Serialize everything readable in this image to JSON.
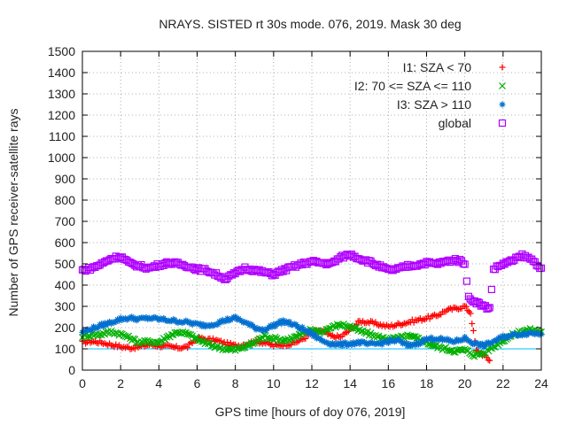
{
  "chart_data": {
    "type": "scatter",
    "title": "NRAYS. SISTED rt 30s mode. 076, 2019. Mask 30 deg",
    "xlabel": "GPS time [hours of doy 076, 2019]",
    "ylabel": "Number of GPS receiver-satellite rays",
    "xlim": [
      0,
      24
    ],
    "ylim": [
      0,
      1500
    ],
    "xticks": [
      0,
      2,
      4,
      6,
      8,
      10,
      12,
      14,
      16,
      18,
      20,
      22,
      24
    ],
    "yticks": [
      0,
      100,
      200,
      300,
      400,
      500,
      600,
      700,
      800,
      900,
      1000,
      1100,
      1200,
      1300,
      1400,
      1500
    ],
    "grid": true,
    "legend_position": "top-right",
    "reference_line": {
      "y": 100,
      "color": "#00bfff"
    },
    "series": [
      {
        "name": "I1: SZA < 70",
        "marker": "+",
        "color": "#ff0000",
        "points": [
          [
            0,
            130
          ],
          [
            0.5,
            135
          ],
          [
            1,
            130
          ],
          [
            1.5,
            120
          ],
          [
            2,
            110
          ],
          [
            2.5,
            105
          ],
          [
            3,
            110
          ],
          [
            3.5,
            120
          ],
          [
            4,
            115
          ],
          [
            4.5,
            110
          ],
          [
            5,
            105
          ],
          [
            5.5,
            110
          ],
          [
            6,
            150
          ],
          [
            6.5,
            145
          ],
          [
            7,
            140
          ],
          [
            7.5,
            125
          ],
          [
            8,
            115
          ],
          [
            8.5,
            120
          ],
          [
            9,
            135
          ],
          [
            9.5,
            130
          ],
          [
            10,
            115
          ],
          [
            10.5,
            120
          ],
          [
            11,
            125
          ],
          [
            11.5,
            145
          ],
          [
            12,
            175
          ],
          [
            12.5,
            185
          ],
          [
            13,
            160
          ],
          [
            13.5,
            155
          ],
          [
            14,
            190
          ],
          [
            14.5,
            230
          ],
          [
            15,
            225
          ],
          [
            15.5,
            215
          ],
          [
            16,
            205
          ],
          [
            16.5,
            215
          ],
          [
            17,
            225
          ],
          [
            17.5,
            235
          ],
          [
            18,
            245
          ],
          [
            18.5,
            255
          ],
          [
            19,
            280
          ],
          [
            19.5,
            290
          ],
          [
            20,
            300
          ],
          [
            20.3,
            270
          ],
          [
            20.6,
            90
          ],
          [
            21,
            70
          ],
          [
            21.3,
            45
          ]
        ]
      },
      {
        "name": "I2: 70 <= SZA <= 110",
        "marker": "x",
        "color": "#00b000",
        "points": [
          [
            0,
            160
          ],
          [
            0.5,
            165
          ],
          [
            1,
            170
          ],
          [
            1.5,
            180
          ],
          [
            2,
            170
          ],
          [
            2.5,
            150
          ],
          [
            3,
            130
          ],
          [
            3.5,
            135
          ],
          [
            4,
            130
          ],
          [
            4.5,
            160
          ],
          [
            5,
            180
          ],
          [
            5.5,
            170
          ],
          [
            6,
            145
          ],
          [
            6.5,
            125
          ],
          [
            7,
            110
          ],
          [
            7.5,
            100
          ],
          [
            8,
            95
          ],
          [
            8.5,
            110
          ],
          [
            9,
            130
          ],
          [
            9.5,
            160
          ],
          [
            10,
            150
          ],
          [
            10.5,
            140
          ],
          [
            11,
            150
          ],
          [
            11.5,
            170
          ],
          [
            12,
            190
          ],
          [
            12.5,
            180
          ],
          [
            13,
            200
          ],
          [
            13.5,
            215
          ],
          [
            14,
            205
          ],
          [
            14.5,
            185
          ],
          [
            15,
            170
          ],
          [
            15.5,
            155
          ],
          [
            16,
            145
          ],
          [
            16.5,
            150
          ],
          [
            17,
            160
          ],
          [
            17.5,
            150
          ],
          [
            18,
            130
          ],
          [
            18.5,
            110
          ],
          [
            19,
            100
          ],
          [
            19.5,
            90
          ],
          [
            20,
            95
          ],
          [
            20.5,
            70
          ],
          [
            21,
            80
          ],
          [
            21.5,
            110
          ],
          [
            22,
            140
          ],
          [
            22.5,
            165
          ],
          [
            23,
            185
          ],
          [
            23.5,
            190
          ],
          [
            24,
            180
          ]
        ]
      },
      {
        "name": "I3: SZA > 110",
        "marker": "*",
        "color": "#0070d0",
        "points": [
          [
            0,
            180
          ],
          [
            0.5,
            195
          ],
          [
            1,
            210
          ],
          [
            1.5,
            225
          ],
          [
            2,
            240
          ],
          [
            2.5,
            245
          ],
          [
            3,
            240
          ],
          [
            3.5,
            245
          ],
          [
            4,
            240
          ],
          [
            4.5,
            235
          ],
          [
            5,
            230
          ],
          [
            5.5,
            225
          ],
          [
            6,
            215
          ],
          [
            6.5,
            210
          ],
          [
            7,
            220
          ],
          [
            7.5,
            235
          ],
          [
            8,
            245
          ],
          [
            8.5,
            225
          ],
          [
            9,
            200
          ],
          [
            9.5,
            190
          ],
          [
            10,
            210
          ],
          [
            10.5,
            230
          ],
          [
            11,
            215
          ],
          [
            11.5,
            195
          ],
          [
            12,
            170
          ],
          [
            12.5,
            140
          ],
          [
            13,
            125
          ],
          [
            13.5,
            120
          ],
          [
            14,
            125
          ],
          [
            14.5,
            130
          ],
          [
            15,
            120
          ],
          [
            15.5,
            125
          ],
          [
            16,
            135
          ],
          [
            16.5,
            140
          ],
          [
            17,
            115
          ],
          [
            17.5,
            125
          ],
          [
            18,
            145
          ],
          [
            18.5,
            150
          ],
          [
            19,
            140
          ],
          [
            19.5,
            135
          ],
          [
            20,
            150
          ],
          [
            20.5,
            125
          ],
          [
            21,
            115
          ],
          [
            21.5,
            135
          ],
          [
            22,
            155
          ],
          [
            22.5,
            165
          ],
          [
            23,
            170
          ],
          [
            23.5,
            175
          ],
          [
            24,
            170
          ]
        ]
      },
      {
        "name": "global",
        "marker": "square",
        "color": "#b000ff",
        "points": [
          [
            0,
            470
          ],
          [
            0.5,
            480
          ],
          [
            1,
            500
          ],
          [
            1.5,
            525
          ],
          [
            2,
            535
          ],
          [
            2.5,
            500
          ],
          [
            3,
            490
          ],
          [
            3.5,
            480
          ],
          [
            4,
            495
          ],
          [
            4.5,
            505
          ],
          [
            5,
            500
          ],
          [
            5.5,
            490
          ],
          [
            6,
            475
          ],
          [
            6.5,
            470
          ],
          [
            7,
            450
          ],
          [
            7.5,
            430
          ],
          [
            8,
            455
          ],
          [
            8.5,
            480
          ],
          [
            9,
            470
          ],
          [
            9.5,
            460
          ],
          [
            10,
            450
          ],
          [
            10.5,
            470
          ],
          [
            11,
            485
          ],
          [
            11.5,
            500
          ],
          [
            12,
            510
          ],
          [
            12.5,
            505
          ],
          [
            13,
            500
          ],
          [
            13.5,
            530
          ],
          [
            14,
            545
          ],
          [
            14.5,
            525
          ],
          [
            15,
            510
          ],
          [
            15.5,
            490
          ],
          [
            16,
            470
          ],
          [
            16.5,
            475
          ],
          [
            17,
            490
          ],
          [
            17.5,
            495
          ],
          [
            18,
            505
          ],
          [
            18.5,
            500
          ],
          [
            19,
            510
          ],
          [
            19.5,
            520
          ],
          [
            20,
            505
          ],
          [
            20.2,
            340
          ],
          [
            20.6,
            320
          ],
          [
            21,
            300
          ],
          [
            21.3,
            290
          ],
          [
            21.5,
            475
          ],
          [
            22,
            500
          ],
          [
            22.5,
            515
          ],
          [
            23,
            540
          ],
          [
            23.5,
            520
          ],
          [
            24,
            480
          ]
        ]
      }
    ]
  }
}
